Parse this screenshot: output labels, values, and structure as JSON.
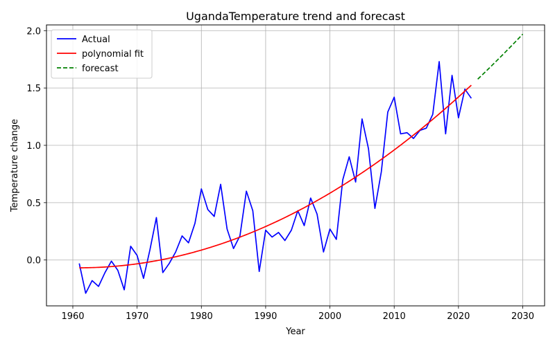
{
  "chart_data": {
    "type": "line",
    "title": "UgandaTemperature trend and forecast",
    "xlabel": "Year",
    "ylabel": "Temperature change",
    "xlim": [
      1955.9,
      2033.4
    ],
    "ylim": [
      -0.4,
      2.05
    ],
    "xticks": [
      1960,
      1970,
      1980,
      1990,
      2000,
      2010,
      2020,
      2030
    ],
    "yticks": [
      0.0,
      0.5,
      1.0,
      1.5,
      2.0
    ],
    "xtick_labels": [
      "1960",
      "1970",
      "1980",
      "1990",
      "2000",
      "2010",
      "2020",
      "2030"
    ],
    "ytick_labels": [
      "0.0",
      "0.5",
      "1.0",
      "1.5",
      "2.0"
    ],
    "grid": true,
    "legend_position": "top-left",
    "series": [
      {
        "name": "Actual",
        "color": "#0000ff",
        "style": "solid",
        "x": [
          1961,
          1962,
          1963,
          1964,
          1965,
          1966,
          1967,
          1968,
          1969,
          1970,
          1971,
          1972,
          1973,
          1974,
          1975,
          1976,
          1977,
          1978,
          1979,
          1980,
          1981,
          1982,
          1983,
          1984,
          1985,
          1986,
          1987,
          1988,
          1989,
          1990,
          1991,
          1992,
          1993,
          1994,
          1995,
          1996,
          1997,
          1998,
          1999,
          2000,
          2001,
          2002,
          2003,
          2004,
          2005,
          2006,
          2007,
          2008,
          2009,
          2010,
          2011,
          2012,
          2013,
          2014,
          2015,
          2016,
          2017,
          2018,
          2019,
          2020,
          2021,
          2022
        ],
        "y": [
          -0.03,
          -0.29,
          -0.18,
          -0.23,
          -0.11,
          -0.01,
          -0.09,
          -0.26,
          0.12,
          0.04,
          -0.16,
          0.09,
          0.37,
          -0.11,
          -0.03,
          0.07,
          0.21,
          0.15,
          0.32,
          0.62,
          0.44,
          0.38,
          0.66,
          0.27,
          0.1,
          0.21,
          0.6,
          0.43,
          -0.1,
          0.26,
          0.2,
          0.24,
          0.17,
          0.26,
          0.43,
          0.3,
          0.54,
          0.4,
          0.07,
          0.27,
          0.18,
          0.7,
          0.9,
          0.68,
          1.23,
          0.97,
          0.45,
          0.77,
          1.29,
          1.42,
          1.1,
          1.11,
          1.06,
          1.13,
          1.15,
          1.27,
          1.73,
          1.1,
          1.61,
          1.24,
          1.49,
          1.41
        ]
      },
      {
        "name": "polynomial fit",
        "color": "#ff0000",
        "style": "solid",
        "fit": {
          "x0": 1961,
          "a": -0.068,
          "b": 0.0,
          "c": 0.000428
        },
        "x_range": [
          1961,
          2022
        ]
      },
      {
        "name": "forecast",
        "color": "#008000",
        "style": "dashed",
        "fit": {
          "x0": 1961,
          "a": -0.068,
          "b": 0.0,
          "c": 0.000428
        },
        "x_range": [
          2023,
          2030
        ]
      }
    ]
  }
}
